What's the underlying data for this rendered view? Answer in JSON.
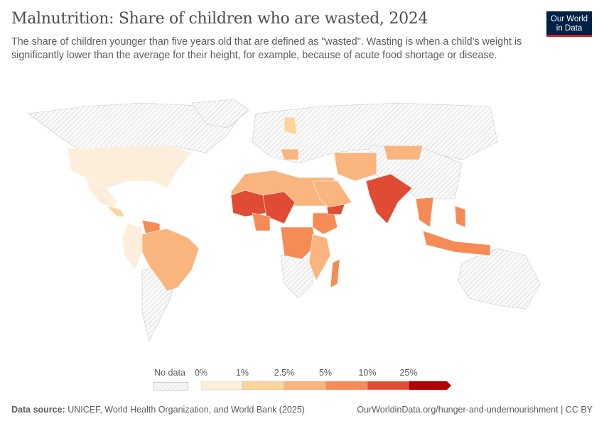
{
  "header": {
    "title": "Malnutrition: Share of children who are wasted, 2024",
    "subtitle": "The share of children younger than five years old that are defined as \"wasted\". Wasting is when a child’s weight is significantly lower than the average for their height, for example, because of acute food shortage or disease.",
    "logo_line1": "Our World",
    "logo_line2": "in Data"
  },
  "legend": {
    "no_data_label": "No data",
    "bins": [
      {
        "label": "0%",
        "color": "#fdeedb"
      },
      {
        "label": "1%",
        "color": "#fcd49c"
      },
      {
        "label": "2.5%",
        "color": "#f9b57d"
      },
      {
        "label": "5%",
        "color": "#f68b55"
      },
      {
        "label": "10%",
        "color": "#e04b33"
      },
      {
        "label": "25%",
        "color": "#b30000"
      }
    ],
    "no_data_color": "#e6e6e6"
  },
  "map_data": {
    "unit": "%",
    "regions": [
      {
        "name": "United States",
        "bin": "0-1%"
      },
      {
        "name": "Mexico",
        "bin": "0-1%"
      },
      {
        "name": "Brazil",
        "bin": "2.5-5%"
      },
      {
        "name": "Peru",
        "bin": "0-1%"
      },
      {
        "name": "Colombia",
        "bin": "0-1%"
      },
      {
        "name": "Venezuela",
        "bin": "5-10%"
      },
      {
        "name": "Mauritania",
        "bin": "10-25%"
      },
      {
        "name": "Mali",
        "bin": "10-25%"
      },
      {
        "name": "Niger",
        "bin": "10-25%"
      },
      {
        "name": "Nigeria",
        "bin": "5-10%"
      },
      {
        "name": "Chad",
        "bin": "10-25%"
      },
      {
        "name": "Sudan",
        "bin": "10-25%"
      },
      {
        "name": "Algeria",
        "bin": "2.5-5%"
      },
      {
        "name": "Libya",
        "bin": "1-2.5%"
      },
      {
        "name": "Egypt",
        "bin": "1-2.5%"
      },
      {
        "name": "Ethiopia",
        "bin": "5-10%"
      },
      {
        "name": "Yemen",
        "bin": "10-25%"
      },
      {
        "name": "Saudi Arabia",
        "bin": "2.5-5%"
      },
      {
        "name": "DR Congo",
        "bin": "5-10%"
      },
      {
        "name": "Angola",
        "bin": "5-10%"
      },
      {
        "name": "Madagascar",
        "bin": "5-10%"
      },
      {
        "name": "Mozambique",
        "bin": "2.5-5%"
      },
      {
        "name": "India",
        "bin": "10-25%"
      },
      {
        "name": "Pakistan",
        "bin": "5-10%"
      },
      {
        "name": "Bangladesh",
        "bin": "5-10%"
      },
      {
        "name": "Myanmar",
        "bin": "5-10%"
      },
      {
        "name": "Mongolia",
        "bin": "1-2.5%"
      },
      {
        "name": "Indonesia",
        "bin": "5-10%"
      },
      {
        "name": "Philippines",
        "bin": "5-10%"
      },
      {
        "name": "Papua New Guinea",
        "bin": "5-10%"
      },
      {
        "name": "Malaysia",
        "bin": "10-25%"
      }
    ]
  },
  "footer": {
    "source_label": "Data source:",
    "source": "UNICEF, World Health Organization, and World Bank (2025)",
    "link": "OurWorldinData.org/hunger-and-undernourishment | CC BY"
  }
}
